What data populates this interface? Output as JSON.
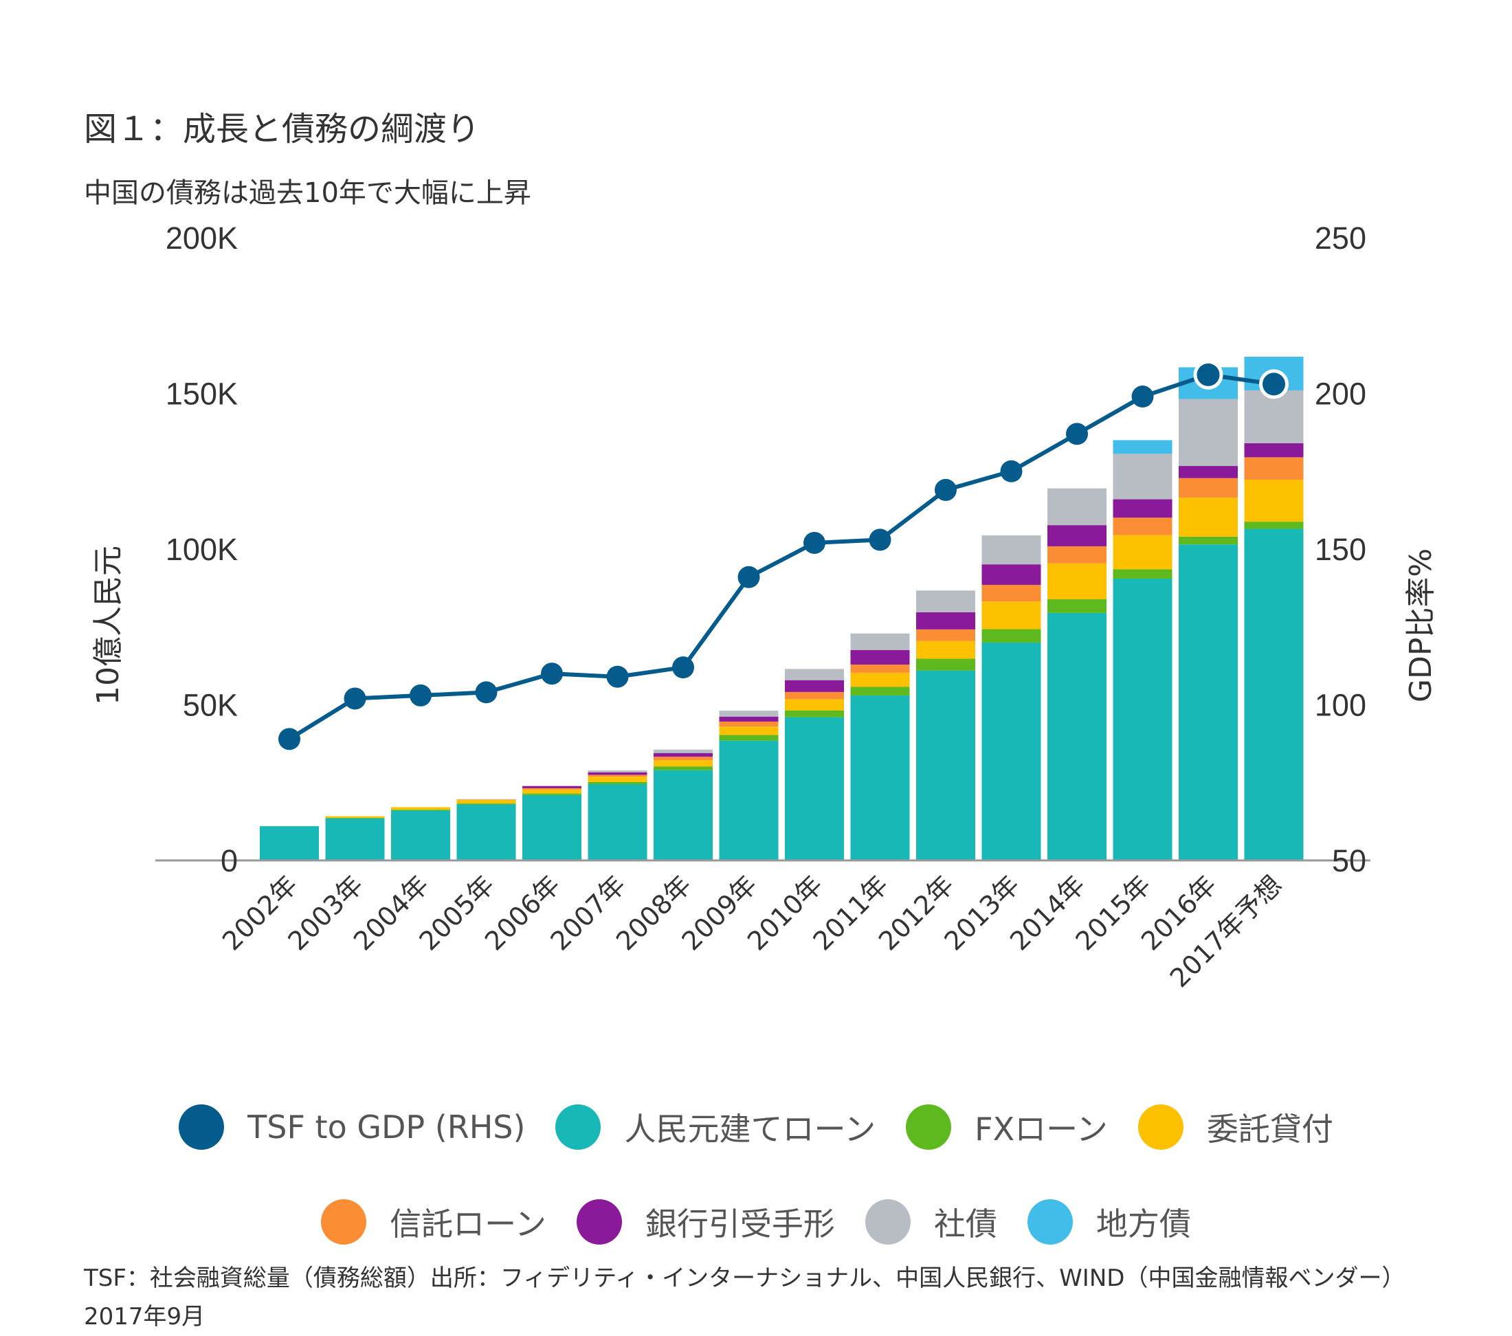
{
  "title": "図１：成長と債務の綱渡り",
  "subtitle": "中国の債務は過去10年で大幅に上昇",
  "footnote": "TSF：社会融資総量（債務総額）出所：フィデリティ・インターナショナル、中国人民銀行、WIND（中国金融情報ベンダー）2017年9月",
  "chart_data": {
    "type": "bar",
    "stacked": true,
    "title": "図１：成長と債務の綱渡り",
    "subtitle": "中国の債務は過去10年で大幅に上昇",
    "ylabel": "10億人民元",
    "y2label": "GDP比率%",
    "ylim": [
      0,
      200000
    ],
    "y2lim": [
      50,
      250
    ],
    "yticks": [
      0,
      50000,
      100000,
      150000,
      200000
    ],
    "yticklabels": [
      "0",
      "50K",
      "100K",
      "150K",
      "200K"
    ],
    "y2ticks": [
      50,
      100,
      150,
      200,
      250
    ],
    "y2ticklabels": [
      "50",
      "100",
      "150",
      "200",
      "250"
    ],
    "grid": false,
    "legend_position": "bottom",
    "categories": [
      "2002年",
      "2003年",
      "2004年",
      "2005年",
      "2006年",
      "2007年",
      "2008年",
      "2009年",
      "2010年",
      "2011年",
      "2012年",
      "2013年",
      "2014年",
      "2015年",
      "2016年",
      "2017年予想"
    ],
    "series": [
      {
        "name": "人民元建てローン",
        "kind": "bar",
        "color": "#17B8B5",
        "values": [
          11000,
          13500,
          16000,
          18000,
          21000,
          24500,
          29000,
          38500,
          46000,
          53000,
          61000,
          70000,
          79500,
          90500,
          101500,
          106500
        ]
      },
      {
        "name": "FXローン",
        "kind": "bar",
        "color": "#5EB91E",
        "values": [
          0,
          200,
          300,
          300,
          500,
          700,
          1200,
          1800,
          2200,
          2800,
          3800,
          4300,
          4400,
          3000,
          2500,
          2300
        ]
      },
      {
        "name": "委託貸付",
        "kind": "bar",
        "color": "#FDC100",
        "values": [
          0,
          500,
          800,
          1100,
          1300,
          1700,
          2000,
          2700,
          3600,
          4500,
          5700,
          8900,
          11500,
          11000,
          12500,
          13500
        ]
      },
      {
        "name": "信託ローン",
        "kind": "bar",
        "color": "#FB8E35",
        "values": [
          0,
          0,
          0,
          200,
          400,
          600,
          1100,
          1600,
          2300,
          2600,
          3700,
          5300,
          5500,
          5600,
          6300,
          7200
        ]
      },
      {
        "name": "銀行引受手形",
        "kind": "bar",
        "color": "#8B1A9B",
        "values": [
          0,
          0,
          0,
          0,
          700,
          800,
          1200,
          1600,
          3800,
          4700,
          5500,
          6600,
          6800,
          5900,
          3900,
          4500
        ]
      },
      {
        "name": "社債",
        "kind": "bar",
        "color": "#B8BCC3",
        "values": [
          0,
          0,
          0,
          0,
          0,
          600,
          1100,
          1900,
          3600,
          5300,
          7000,
          9300,
          11800,
          14600,
          21500,
          17000
        ]
      },
      {
        "name": "地方債",
        "kind": "bar",
        "color": "#42BCE8",
        "values": [
          0,
          0,
          0,
          0,
          0,
          0,
          0,
          0,
          0,
          0,
          0,
          0,
          0,
          4400,
          10200,
          10800
        ]
      },
      {
        "name": "TSF to GDP (RHS)",
        "kind": "line",
        "axis": "right",
        "color": "#045B8C",
        "values": [
          89,
          102,
          103,
          104,
          110,
          109,
          112,
          141,
          152,
          153,
          169,
          175,
          187,
          199,
          206,
          203
        ]
      }
    ]
  },
  "legend": {
    "row1": [
      {
        "label": "TSF to GDP (RHS)",
        "color": "#045B8C"
      },
      {
        "label": "人民元建てローン",
        "color": "#17B8B5"
      },
      {
        "label": "FXローン",
        "color": "#5EB91E"
      },
      {
        "label": "委託貸付",
        "color": "#FDC100"
      }
    ],
    "row2": [
      {
        "label": "信託ローン",
        "color": "#FB8E35"
      },
      {
        "label": "銀行引受手形",
        "color": "#8B1A9B"
      },
      {
        "label": "社債",
        "color": "#B8BCC3"
      },
      {
        "label": "地方債",
        "color": "#42BCE8"
      }
    ]
  }
}
